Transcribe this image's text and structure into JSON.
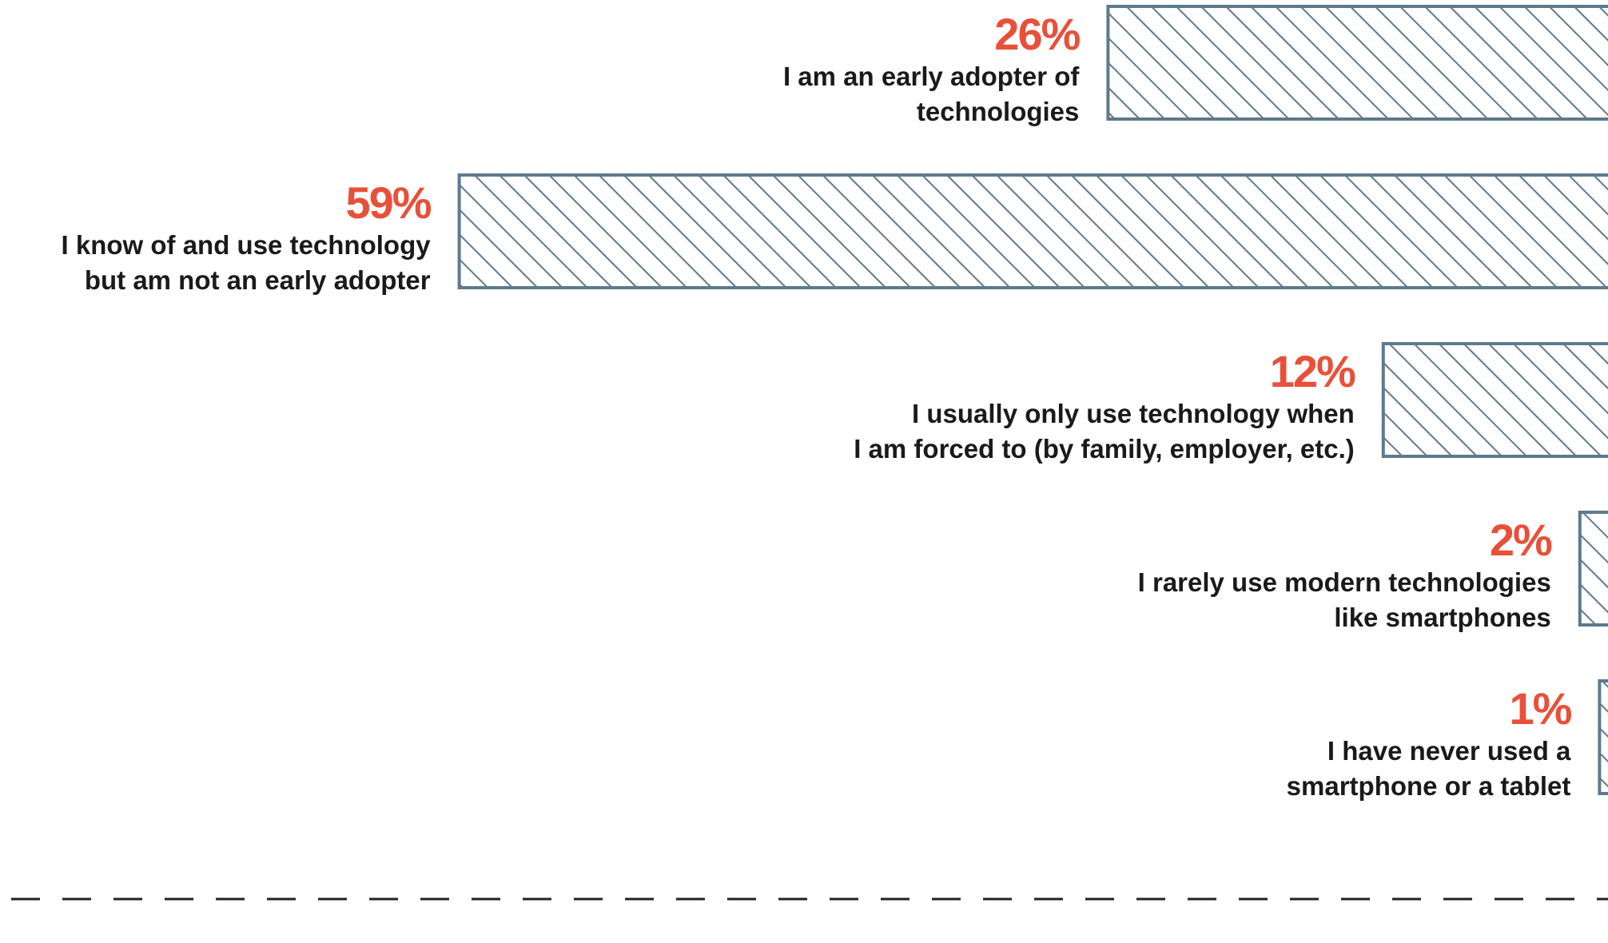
{
  "chart_data": {
    "type": "bar",
    "orientation": "horizontal",
    "categories": [
      [
        "I am an early adopter of",
        "technologies"
      ],
      [
        "I know of and use technology",
        "but am not an early adopter"
      ],
      [
        "I usually only use technology when",
        "I am forced to (by family, employer, etc.)"
      ],
      [
        "I rarely use modern technologies",
        "like smartphones"
      ],
      [
        "I have never used a",
        "smartphone or a tablet"
      ]
    ],
    "values": [
      26,
      59,
      12,
      2,
      1
    ],
    "value_labels": [
      "26%",
      "59%",
      "12%",
      "2%",
      "1%"
    ],
    "color": "#5e7a8c",
    "label_color": "#e8503a"
  }
}
